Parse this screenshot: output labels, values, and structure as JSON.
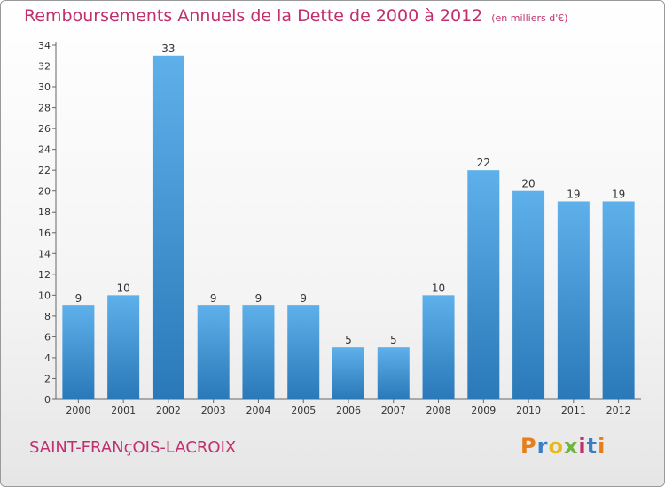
{
  "title": "Remboursements Annuels de la Dette de 2000 à 2012",
  "unit": "(en milliers d'€)",
  "commune": "SAINT-FRANçOIS-LACROIX",
  "logo": {
    "text": "Proxiti"
  },
  "colors": {
    "title": "#c0306e",
    "bar_light": "#5eb0ea",
    "bar_dark": "#2a78b8"
  },
  "chart_data": {
    "type": "bar",
    "categories": [
      "2000",
      "2001",
      "2002",
      "2003",
      "2004",
      "2005",
      "2006",
      "2007",
      "2008",
      "2009",
      "2010",
      "2011",
      "2012"
    ],
    "values": [
      9,
      10,
      33,
      9,
      9,
      9,
      5,
      5,
      10,
      22,
      20,
      19,
      19
    ],
    "data_labels": [
      "9",
      "10",
      "33",
      "9",
      "9",
      "9",
      "5",
      "5",
      "10",
      "22",
      "20",
      "19",
      "19"
    ],
    "ylim": [
      0,
      34
    ],
    "yticks": [
      0,
      2,
      4,
      6,
      8,
      10,
      12,
      14,
      16,
      18,
      20,
      22,
      24,
      26,
      28,
      30,
      32,
      34
    ],
    "grid": false,
    "xlabel": "",
    "ylabel": ""
  }
}
